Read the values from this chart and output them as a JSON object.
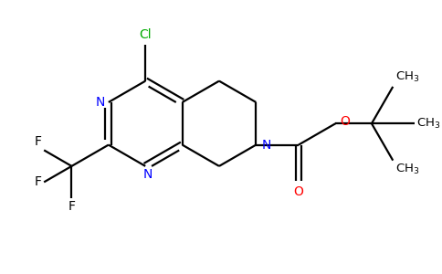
{
  "bg_color": "#ffffff",
  "bond_color": "#000000",
  "N_color": "#0000ff",
  "O_color": "#ff0000",
  "Cl_color": "#00aa00",
  "F_color": "#000000",
  "line_width": 1.6,
  "figsize": [
    4.84,
    3.0
  ],
  "dpi": 100,
  "xlim": [
    0,
    9.5
  ],
  "ylim": [
    0.5,
    6.5
  ]
}
